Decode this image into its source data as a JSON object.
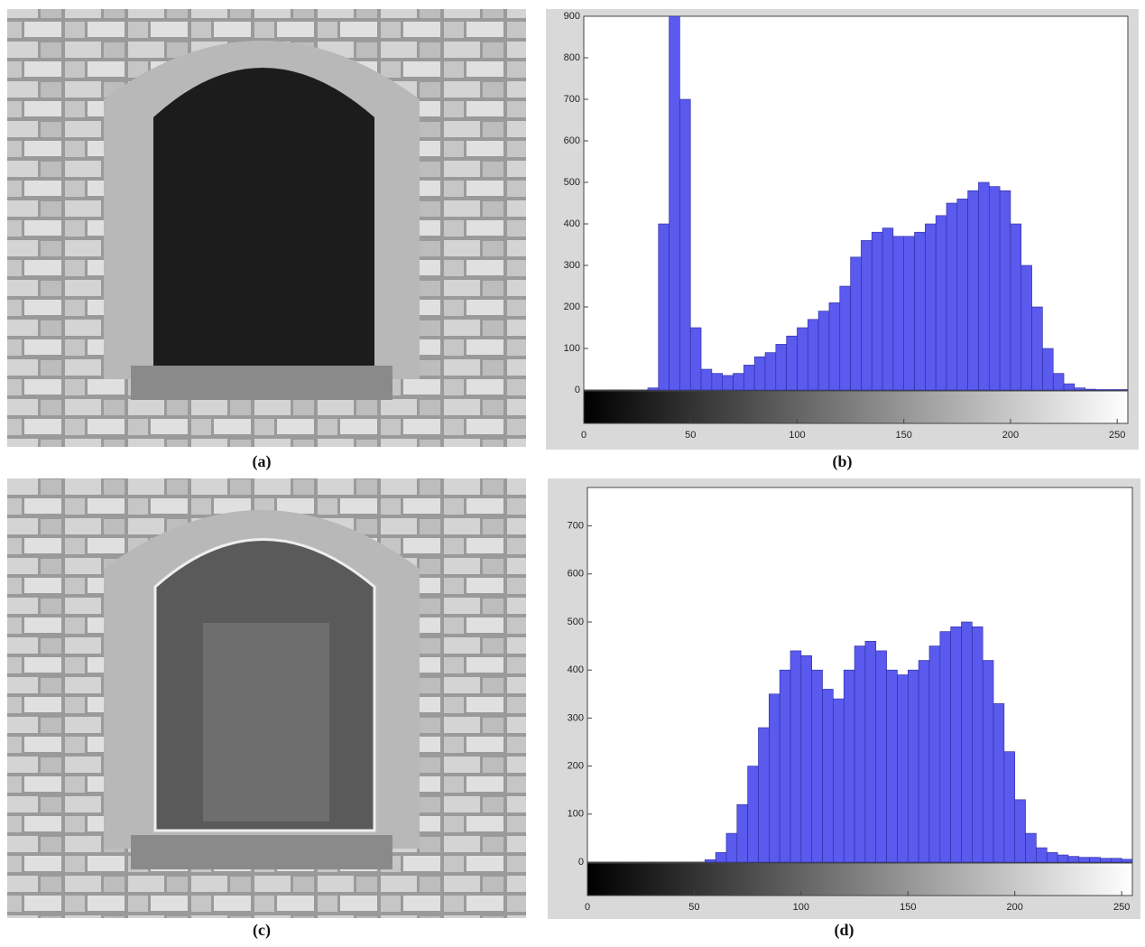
{
  "images": [
    {
      "caption": "(a)"
    },
    {
      "caption": "(c)"
    }
  ],
  "chart_data": [
    {
      "type": "histogram",
      "caption": "(b)",
      "color": "#5a5aee",
      "bins": [
        0,
        5,
        10,
        15,
        20,
        25,
        30,
        35,
        40,
        45,
        50,
        55,
        60,
        65,
        70,
        75,
        80,
        85,
        90,
        95,
        100,
        105,
        110,
        115,
        120,
        125,
        130,
        135,
        140,
        145,
        150,
        155,
        160,
        165,
        170,
        175,
        180,
        185,
        190,
        195,
        200,
        205,
        210,
        215,
        220,
        225,
        230,
        235,
        240,
        245,
        250,
        255
      ],
      "values": [
        0,
        0,
        0,
        0,
        0,
        0,
        5,
        400,
        900,
        700,
        150,
        50,
        40,
        35,
        40,
        60,
        80,
        90,
        110,
        130,
        150,
        170,
        190,
        210,
        250,
        320,
        360,
        380,
        390,
        370,
        370,
        380,
        400,
        420,
        450,
        460,
        480,
        500,
        490,
        480,
        400,
        300,
        200,
        100,
        40,
        15,
        5,
        2,
        1,
        1,
        1
      ],
      "xlim": [
        0,
        255
      ],
      "xticks": [
        0,
        50,
        100,
        150,
        200,
        250
      ],
      "ylim": [
        0,
        900
      ],
      "yticks": [
        0,
        100,
        200,
        300,
        400,
        500,
        600,
        700,
        800,
        900
      ]
    },
    {
      "type": "histogram",
      "caption": "(d)",
      "color": "#5a5aee",
      "bins": [
        0,
        5,
        10,
        15,
        20,
        25,
        30,
        35,
        40,
        45,
        50,
        55,
        60,
        65,
        70,
        75,
        80,
        85,
        90,
        95,
        100,
        105,
        110,
        115,
        120,
        125,
        130,
        135,
        140,
        145,
        150,
        155,
        160,
        165,
        170,
        175,
        180,
        185,
        190,
        195,
        200,
        205,
        210,
        215,
        220,
        225,
        230,
        235,
        240,
        245,
        250,
        255
      ],
      "values": [
        0,
        0,
        0,
        0,
        0,
        0,
        0,
        0,
        0,
        0,
        0,
        5,
        20,
        60,
        120,
        200,
        280,
        350,
        400,
        440,
        430,
        400,
        360,
        340,
        400,
        450,
        460,
        440,
        400,
        390,
        400,
        420,
        450,
        480,
        490,
        500,
        490,
        420,
        330,
        230,
        130,
        60,
        30,
        20,
        15,
        12,
        10,
        10,
        8,
        8,
        6
      ],
      "xlim": [
        0,
        255
      ],
      "xticks": [
        0,
        50,
        100,
        150,
        200,
        250
      ],
      "ylim": [
        0,
        780
      ],
      "yticks": [
        0,
        100,
        200,
        300,
        400,
        500,
        600,
        700
      ]
    }
  ]
}
